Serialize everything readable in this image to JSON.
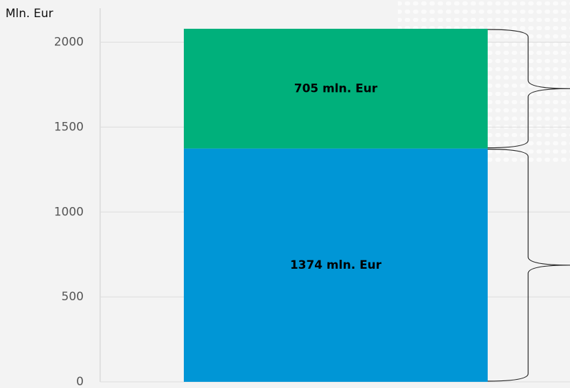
{
  "chart_data": {
    "type": "stacked_bar",
    "y_label": "Mln. Eur",
    "categories": [
      null
    ],
    "series": [
      {
        "color": "#0096d6",
        "values": [
          1374
        ],
        "value_labels": [
          "1374 mln. Eur"
        ]
      },
      {
        "color": "#00b07b",
        "values": [
          705
        ],
        "value_labels": [
          "705 mln. Eur"
        ]
      }
    ],
    "ylim": [
      0,
      2200
    ],
    "yticks": [
      0,
      500,
      1000,
      1500,
      2000
    ],
    "grid": true
  }
}
